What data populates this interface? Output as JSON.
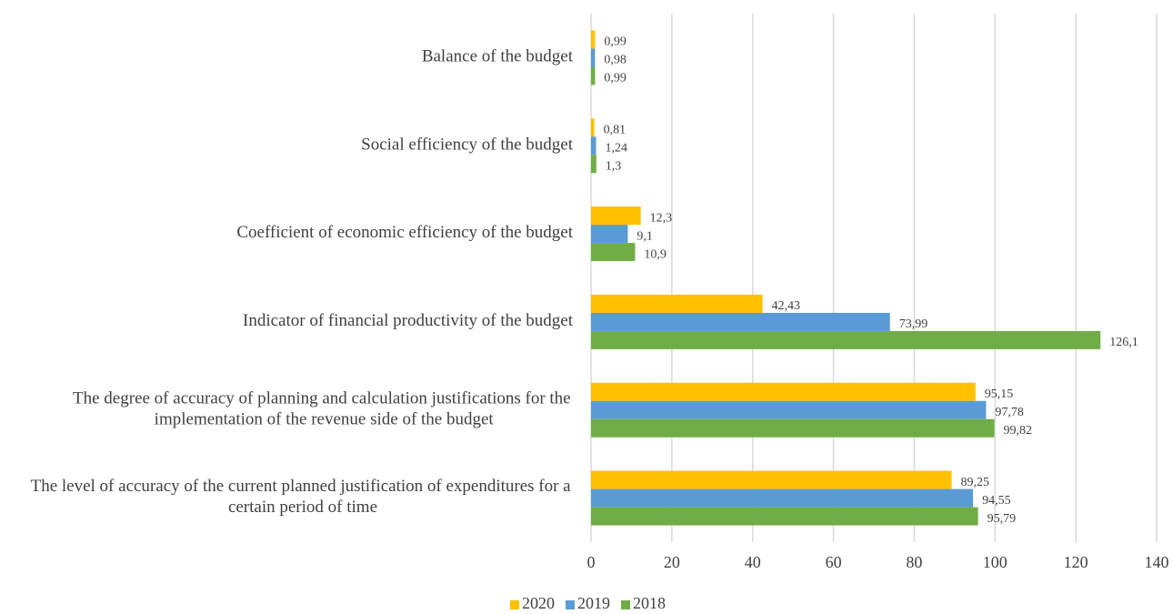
{
  "chart_data": {
    "type": "bar",
    "orientation": "horizontal",
    "categories": [
      "Balance of the budget",
      "Social efficiency of the budget",
      "Coefficient of economic efficiency of the budget",
      "Indicator of financial productivity of the budget",
      "The degree of accuracy of planning and calculation justifications for the implementation of the revenue side of the budget",
      "The level of accuracy of the current planned justification of expenditures for a certain period of time"
    ],
    "series": [
      {
        "name": "2020",
        "color": "#ffc000",
        "values": [
          0.99,
          0.81,
          12.3,
          42.43,
          95.15,
          89.25
        ],
        "value_labels": [
          "0,99",
          "0,81",
          "12,3",
          "42,43",
          "95,15",
          "89,25"
        ]
      },
      {
        "name": "2019",
        "color": "#5b9bd5",
        "values": [
          0.98,
          1.24,
          9.1,
          73.99,
          97.78,
          94.55
        ],
        "value_labels": [
          "0,98",
          "1,24",
          "9,1",
          "73,99",
          "97,78",
          "94,55"
        ]
      },
      {
        "name": "2018",
        "color": "#70ad47",
        "values": [
          0.99,
          1.3,
          10.9,
          126.1,
          99.82,
          95.79
        ],
        "value_labels": [
          "0,99",
          "1,3",
          "10,9",
          "126,1",
          "99,82",
          "95,79"
        ]
      }
    ],
    "xlim": [
      0,
      140
    ],
    "xticks": [
      0,
      20,
      40,
      60,
      80,
      100,
      120,
      140
    ],
    "grid": true,
    "legend": "bottom"
  }
}
